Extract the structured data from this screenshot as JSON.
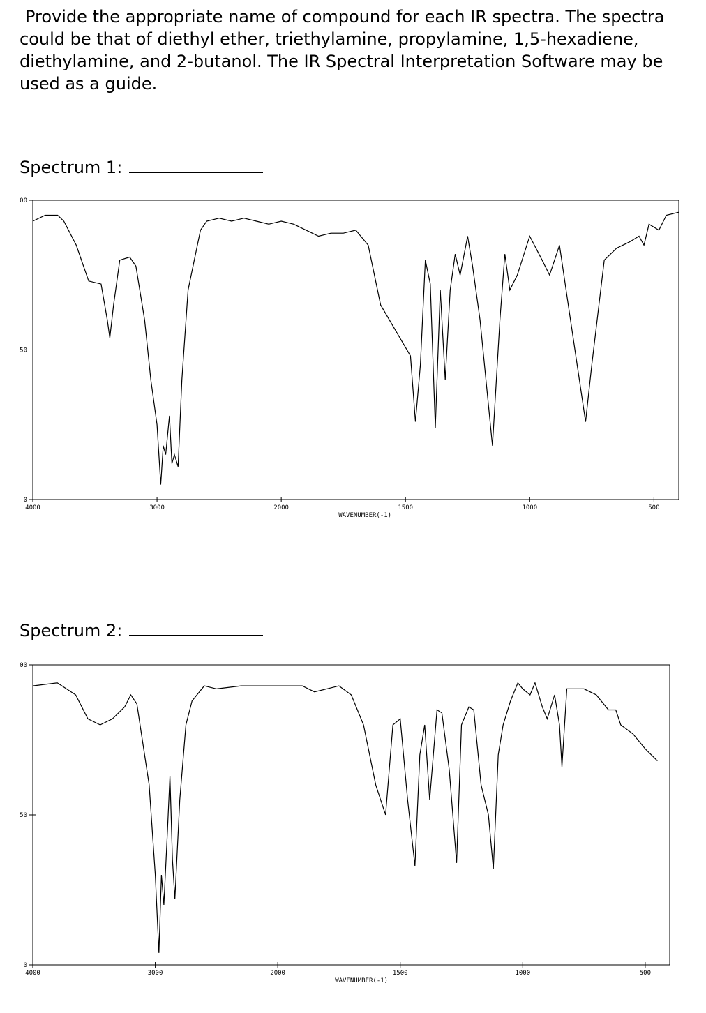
{
  "question": "Provide the appropriate name of compound for each IR spectra. The spectra could be that of diethyl ether, triethylamine, propylamine, 1,5-hexadiene, diethylamine, and 2-butanol. The IR Spectral Interpretation Software may be used as a guide.",
  "chart_data": [
    {
      "type": "line",
      "title": "Spectrum 1:",
      "x_label": "WAVENUMBER(-1)",
      "color": "#000000",
      "xlim": [
        4000,
        400
      ],
      "x_scale_break": 2000,
      "ylim": [
        0,
        100
      ],
      "xticks": [
        4000,
        3000,
        2000,
        1500,
        1000,
        500
      ],
      "yticks": [
        0,
        50,
        {
          "value": 100,
          "label": "00"
        }
      ],
      "x": [
        4000,
        3900,
        3800,
        3750,
        3650,
        3550,
        3450,
        3400,
        3380,
        3350,
        3300,
        3220,
        3170,
        3100,
        3050,
        3000,
        2970,
        2950,
        2930,
        2900,
        2880,
        2860,
        2830,
        2800,
        2750,
        2700,
        2650,
        2600,
        2500,
        2400,
        2300,
        2200,
        2100,
        2000,
        1950,
        1900,
        1850,
        1800,
        1750,
        1700,
        1650,
        1600,
        1480,
        1460,
        1440,
        1420,
        1400,
        1380,
        1360,
        1340,
        1320,
        1300,
        1280,
        1250,
        1230,
        1200,
        1150,
        1120,
        1100,
        1080,
        1050,
        1000,
        950,
        920,
        880,
        850,
        800,
        775,
        750,
        700,
        650,
        600,
        560,
        540,
        520,
        480,
        450,
        400
      ],
      "values": [
        93,
        95,
        95,
        93,
        85,
        73,
        72,
        60,
        54,
        65,
        80,
        81,
        78,
        60,
        40,
        25,
        5,
        18,
        15,
        28,
        12,
        15,
        11,
        40,
        70,
        80,
        90,
        93,
        94,
        93,
        94,
        93,
        92,
        93,
        92,
        90,
        88,
        89,
        89,
        90,
        85,
        65,
        48,
        26,
        45,
        80,
        72,
        24,
        70,
        40,
        70,
        82,
        75,
        88,
        78,
        60,
        18,
        60,
        82,
        70,
        75,
        88,
        80,
        75,
        85,
        68,
        40,
        26,
        45,
        80,
        84,
        86,
        88,
        85,
        92,
        90,
        95,
        96
      ]
    },
    {
      "type": "line",
      "title": "Spectrum 2:",
      "x_label": "WAVENUMBER(-1)",
      "color": "#000000",
      "xlim": [
        4000,
        400
      ],
      "x_scale_break": 2000,
      "ylim": [
        0,
        100
      ],
      "xticks": [
        4000,
        3000,
        2000,
        1500,
        1000,
        500
      ],
      "yticks": [
        0,
        50,
        {
          "value": 100,
          "label": "00"
        }
      ],
      "x": [
        4000,
        3800,
        3650,
        3550,
        3450,
        3350,
        3250,
        3200,
        3150,
        3050,
        3000,
        2970,
        2950,
        2930,
        2900,
        2880,
        2860,
        2840,
        2800,
        2750,
        2700,
        2600,
        2500,
        2300,
        2100,
        2000,
        1900,
        1850,
        1800,
        1750,
        1700,
        1650,
        1600,
        1560,
        1530,
        1500,
        1470,
        1440,
        1420,
        1400,
        1380,
        1350,
        1330,
        1300,
        1270,
        1250,
        1220,
        1200,
        1170,
        1140,
        1120,
        1100,
        1080,
        1050,
        1020,
        1000,
        970,
        950,
        920,
        900,
        870,
        850,
        840,
        820,
        750,
        700,
        650,
        620,
        600,
        550,
        500,
        450
      ],
      "values": [
        93,
        94,
        90,
        82,
        80,
        82,
        86,
        90,
        87,
        60,
        30,
        4,
        30,
        20,
        45,
        63,
        35,
        22,
        55,
        80,
        88,
        93,
        92,
        93,
        93,
        93,
        93,
        91,
        92,
        93,
        90,
        80,
        60,
        50,
        80,
        82,
        55,
        33,
        70,
        80,
        55,
        85,
        84,
        65,
        34,
        80,
        86,
        85,
        60,
        50,
        32,
        70,
        80,
        88,
        94,
        92,
        90,
        94,
        86,
        82,
        90,
        80,
        66,
        92,
        92,
        90,
        85,
        85,
        80,
        77,
        72,
        68
      ]
    }
  ]
}
